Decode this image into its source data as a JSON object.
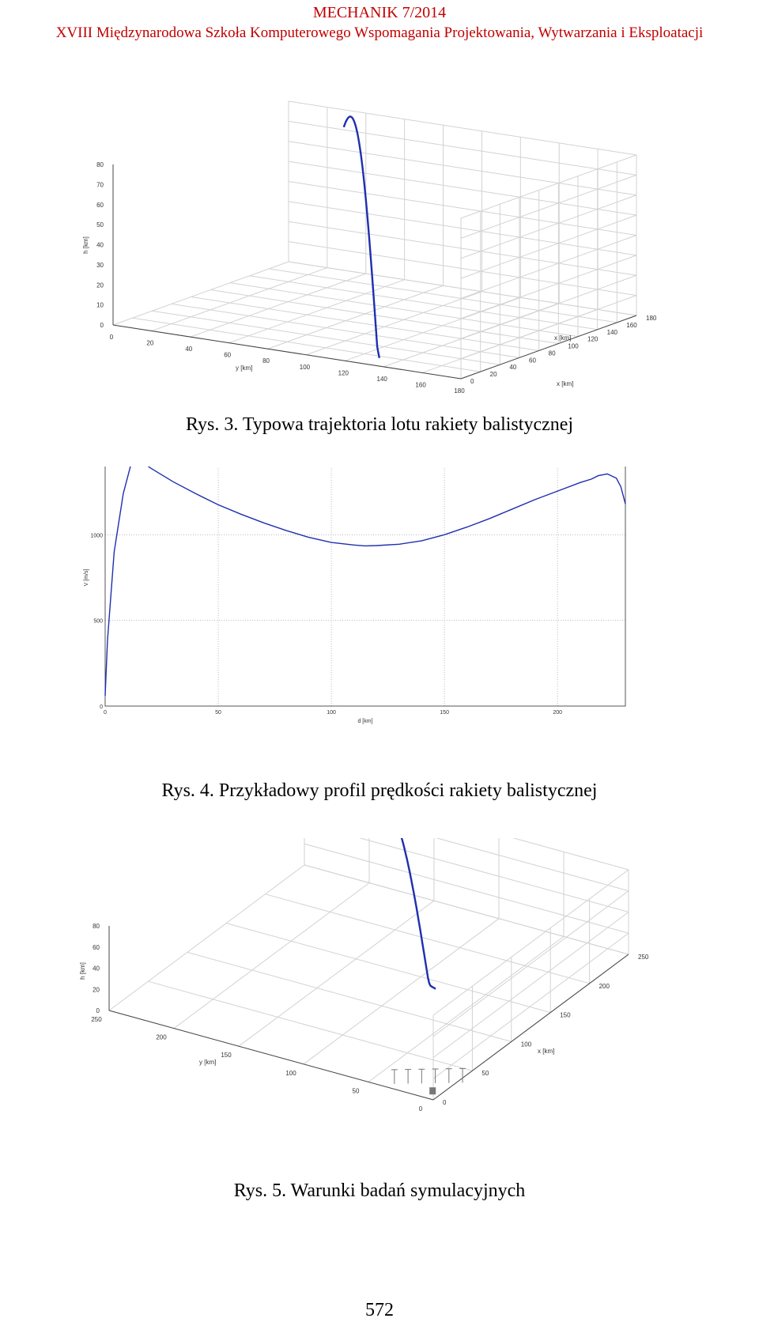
{
  "header": {
    "journal": "MECHANIK 7/2014",
    "conference": "XVIII Międzynarodowa Szkoła Komputerowego Wspomagania Projektowania, Wytwarzania i Eksploatacji"
  },
  "figures": [
    {
      "caption": "Rys. 3. Typowa trajektoria lotu rakiety balistycznej"
    },
    {
      "caption": "Rys. 4. Przykładowy profil prędkości rakiety balistycznej"
    },
    {
      "caption": "Rys. 5. Warunki badań symulacyjnych"
    }
  ],
  "page_number": "572",
  "colors": {
    "curve": "#1f2fae",
    "header": "#c00000"
  },
  "chart_data": [
    {
      "type": "line",
      "projection": "3d",
      "zlabel": "h [km]",
      "ylabel": "y [km]",
      "xlabel": "x [km]",
      "zticks": [
        "0",
        "10",
        "20",
        "30",
        "40",
        "50",
        "60",
        "70",
        "80"
      ],
      "yticks": [
        "0",
        "20",
        "40",
        "60",
        "80",
        "100",
        "120",
        "140",
        "160",
        "180"
      ],
      "xticks": [
        "0",
        "20",
        "40",
        "60",
        "80",
        "100",
        "120",
        "140",
        "160",
        "180"
      ],
      "zlim": [
        0,
        80
      ],
      "ylim": [
        0,
        180
      ],
      "xlim": [
        0,
        180
      ],
      "grid": true
    },
    {
      "type": "line",
      "xlabel": "d [km]",
      "ylabel": "V [m/s]",
      "xticks": [
        "0",
        "50",
        "100",
        "150",
        "200"
      ],
      "yticks": [
        "0",
        "500",
        "1000",
        "1500"
      ],
      "xlim": [
        0,
        230
      ],
      "ylim": [
        0,
        1500
      ],
      "grid": true,
      "x": [
        0,
        1,
        4,
        8,
        12,
        13,
        20,
        30,
        40,
        50,
        60,
        70,
        80,
        90,
        100,
        110,
        115,
        120,
        130,
        140,
        150,
        160,
        170,
        180,
        190,
        200,
        210,
        215,
        218,
        222,
        226,
        228,
        230
      ],
      "y": [
        60,
        380,
        900,
        1240,
        1440,
        1460,
        1390,
        1310,
        1240,
        1175,
        1120,
        1070,
        1025,
        985,
        955,
        940,
        935,
        937,
        945,
        965,
        1000,
        1045,
        1095,
        1150,
        1205,
        1255,
        1305,
        1325,
        1345,
        1355,
        1330,
        1280,
        1180
      ]
    },
    {
      "type": "line",
      "projection": "3d",
      "zlabel": "h [km]",
      "ylabel": "y [km]",
      "xlabel": "x [km]",
      "zticks": [
        "0",
        "20",
        "40",
        "60",
        "80"
      ],
      "yticks": [
        "250",
        "200",
        "150",
        "100",
        "50",
        "0"
      ],
      "xticks": [
        "0",
        "50",
        "100",
        "150",
        "200",
        "250"
      ],
      "zlim": [
        0,
        80
      ],
      "ylim": [
        0,
        250
      ],
      "xlim": [
        0,
        250
      ],
      "grid": true
    }
  ]
}
